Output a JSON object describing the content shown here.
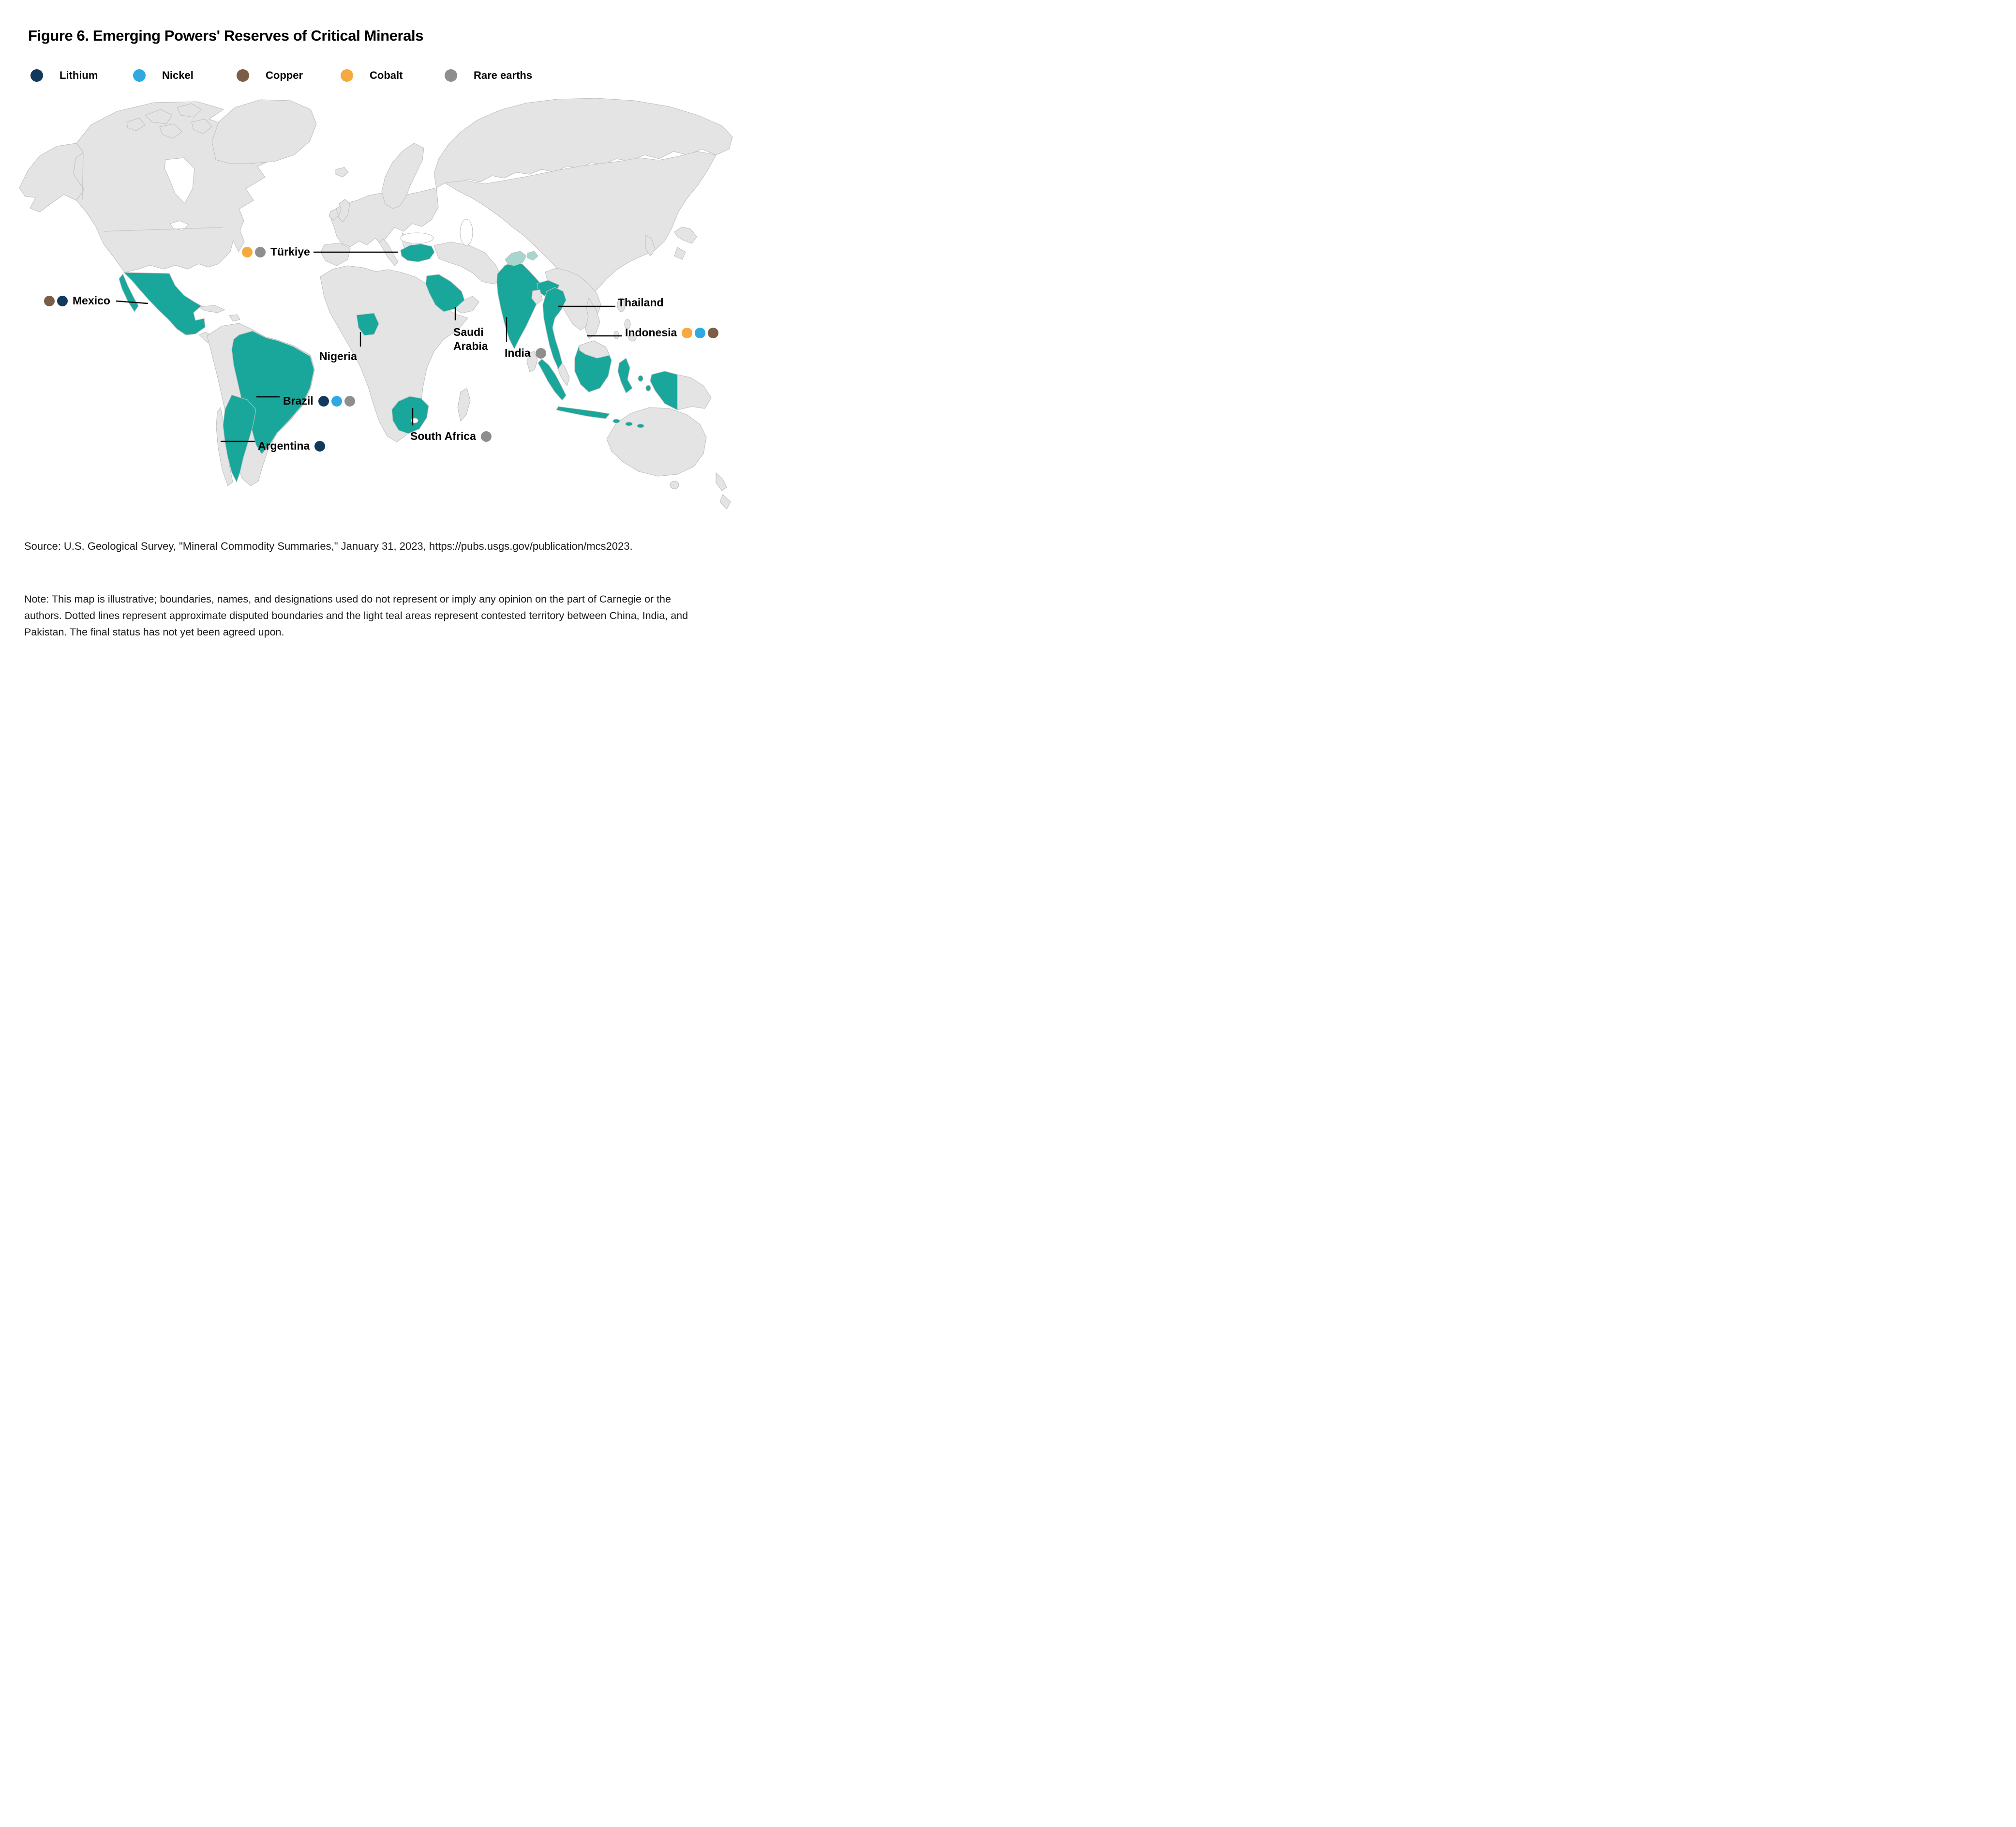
{
  "title": "Figure 6. Emerging Powers' Reserves of Critical Minerals",
  "legend": {
    "items": [
      {
        "key": "lithium",
        "label": "Lithium"
      },
      {
        "key": "nickel",
        "label": "Nickel"
      },
      {
        "key": "copper",
        "label": "Copper"
      },
      {
        "key": "cobalt",
        "label": "Cobalt"
      },
      {
        "key": "rare_earths",
        "label": "Rare earths"
      }
    ],
    "colors": {
      "lithium": "#12395B",
      "nickel": "#2FA9E0",
      "copper": "#7B5E46",
      "cobalt": "#F6A93F",
      "rare_earths": "#8E8E8E"
    }
  },
  "map": {
    "land_color": "#E4E4E4",
    "border_color": "#C0C0C0",
    "highlight_color": "#18A79A",
    "contested_color": "#A7D6CF",
    "highlighted_countries": [
      "Mexico",
      "Brazil",
      "Argentina",
      "Nigeria",
      "South Africa",
      "Saudi Arabia",
      "Türkiye",
      "India",
      "Thailand",
      "Indonesia"
    ],
    "labels": [
      {
        "name": "Türkiye",
        "minerals": [
          "cobalt",
          "rare_earths"
        ],
        "dots_position": "left"
      },
      {
        "name": "Mexico",
        "minerals": [
          "copper",
          "lithium"
        ],
        "dots_position": "left"
      },
      {
        "name": "Brazil",
        "minerals": [
          "lithium",
          "nickel",
          "rare_earths"
        ],
        "dots_position": "right"
      },
      {
        "name": "Argentina",
        "minerals": [
          "lithium"
        ],
        "dots_position": "right"
      },
      {
        "name": "Nigeria",
        "minerals": [],
        "dots_position": "none"
      },
      {
        "name": "Saudi Arabia",
        "minerals": [],
        "dots_position": "none"
      },
      {
        "name": "India",
        "minerals": [
          "rare_earths"
        ],
        "dots_position": "right"
      },
      {
        "name": "Thailand",
        "minerals": [],
        "dots_position": "none"
      },
      {
        "name": "Indonesia",
        "minerals": [
          "cobalt",
          "nickel",
          "copper"
        ],
        "dots_position": "right"
      },
      {
        "name": "South Africa",
        "minerals": [
          "rare_earths"
        ],
        "dots_position": "right"
      }
    ]
  },
  "chart_data": {
    "type": "table",
    "title": "Figure 6. Emerging Powers' Reserves of Critical Minerals",
    "categories": [
      "Türkiye",
      "Mexico",
      "Brazil",
      "Argentina",
      "Nigeria",
      "Saudi Arabia",
      "India",
      "Thailand",
      "Indonesia",
      "South Africa"
    ],
    "series": [
      {
        "name": "Lithium",
        "values": [
          0,
          1,
          1,
          1,
          0,
          0,
          0,
          0,
          0,
          0
        ]
      },
      {
        "name": "Nickel",
        "values": [
          0,
          0,
          1,
          0,
          0,
          0,
          0,
          0,
          1,
          0
        ]
      },
      {
        "name": "Copper",
        "values": [
          0,
          1,
          0,
          0,
          0,
          0,
          0,
          0,
          1,
          0
        ]
      },
      {
        "name": "Cobalt",
        "values": [
          1,
          0,
          0,
          0,
          0,
          0,
          0,
          0,
          1,
          0
        ]
      },
      {
        "name": "Rare earths",
        "values": [
          1,
          0,
          1,
          0,
          0,
          0,
          1,
          0,
          0,
          1
        ]
      }
    ],
    "legend_position": "top"
  },
  "source": "Source: U.S. Geological Survey, \"Mineral Commodity Summaries,\" January 31, 2023, https://pubs.usgs.gov/publication/mcs2023.",
  "note": "Note: This map is illustrative; boundaries, names, and designations used do not represent or imply any opinion on the part of Carnegie or the authors. Dotted lines represent approximate disputed boundaries and the light teal areas represent contested territory between China, India, and Pakistan. The final status has not yet been agreed upon."
}
